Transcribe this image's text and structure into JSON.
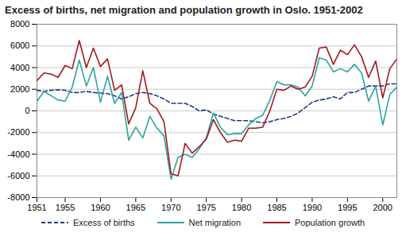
{
  "chart_data": {
    "type": "line",
    "title": "Excess of births, net migration and population growth in Oslo. 1951-2002",
    "x": [
      1951,
      1952,
      1953,
      1954,
      1955,
      1956,
      1957,
      1958,
      1959,
      1960,
      1961,
      1962,
      1963,
      1964,
      1965,
      1966,
      1967,
      1968,
      1969,
      1970,
      1971,
      1972,
      1973,
      1974,
      1975,
      1976,
      1977,
      1978,
      1979,
      1980,
      1981,
      1982,
      1983,
      1984,
      1985,
      1986,
      1987,
      1988,
      1989,
      1990,
      1991,
      1992,
      1993,
      1994,
      1995,
      1996,
      1997,
      1998,
      1999,
      2000,
      2001,
      2002
    ],
    "series": [
      {
        "name": "Excess of births",
        "color": "#1f3c88",
        "line_style": "dashed",
        "values": [
          1900,
          1800,
          1900,
          1950,
          1900,
          1700,
          1700,
          1800,
          1700,
          1650,
          1600,
          1400,
          1100,
          1300,
          1600,
          1700,
          1600,
          1400,
          1100,
          700,
          700,
          700,
          400,
          0,
          100,
          -300,
          -500,
          -700,
          -900,
          -900,
          -900,
          -1000,
          -1100,
          -1000,
          -800,
          -700,
          -500,
          -200,
          300,
          800,
          1000,
          1100,
          1300,
          1100,
          1700,
          1700,
          2000,
          2300,
          2300,
          2300,
          2500,
          2500
        ]
      },
      {
        "name": "Net migration",
        "color": "#2aa3a3",
        "line_style": "solid",
        "values": [
          900,
          1800,
          1400,
          1000,
          900,
          2200,
          4700,
          2300,
          4000,
          800,
          3200,
          700,
          1700,
          -2700,
          -1500,
          -2500,
          -500,
          -1600,
          -2300,
          -6300,
          -4300,
          -4000,
          -4300,
          -3500,
          -2500,
          -200,
          -1500,
          -2200,
          -2100,
          -2100,
          -1300,
          -700,
          -400,
          1000,
          2700,
          2400,
          2400,
          2200,
          1400,
          2300,
          4900,
          4700,
          3600,
          3900,
          3600,
          4300,
          3500,
          900,
          2300,
          -1300,
          1500,
          2200
        ]
      },
      {
        "name": "Population growth",
        "color": "#a3191e",
        "line_style": "solid",
        "values": [
          2800,
          3500,
          3400,
          3100,
          4200,
          3900,
          6500,
          4000,
          5800,
          4100,
          4800,
          1900,
          2400,
          -1200,
          300,
          3700,
          700,
          200,
          -1000,
          -5800,
          -6000,
          -3000,
          -3900,
          -3300,
          -2600,
          -800,
          -2000,
          -2900,
          -2700,
          -2800,
          -1600,
          -1600,
          -1500,
          0,
          2000,
          1900,
          2300,
          2000,
          2200,
          3200,
          5800,
          5900,
          4300,
          5600,
          5200,
          6100,
          5000,
          3100,
          4600,
          1200,
          3900,
          4800
        ]
      }
    ],
    "xlim": [
      1951,
      2002
    ],
    "xticks": [
      1951,
      1955,
      1960,
      1965,
      1970,
      1975,
      1980,
      1985,
      1990,
      1995,
      2000
    ],
    "ylim": [
      -8000,
      8000
    ],
    "yticks": [
      -8000,
      -6000,
      -4000,
      -2000,
      0,
      2000,
      4000,
      6000,
      8000
    ],
    "grid": true,
    "legend": "bottom"
  }
}
